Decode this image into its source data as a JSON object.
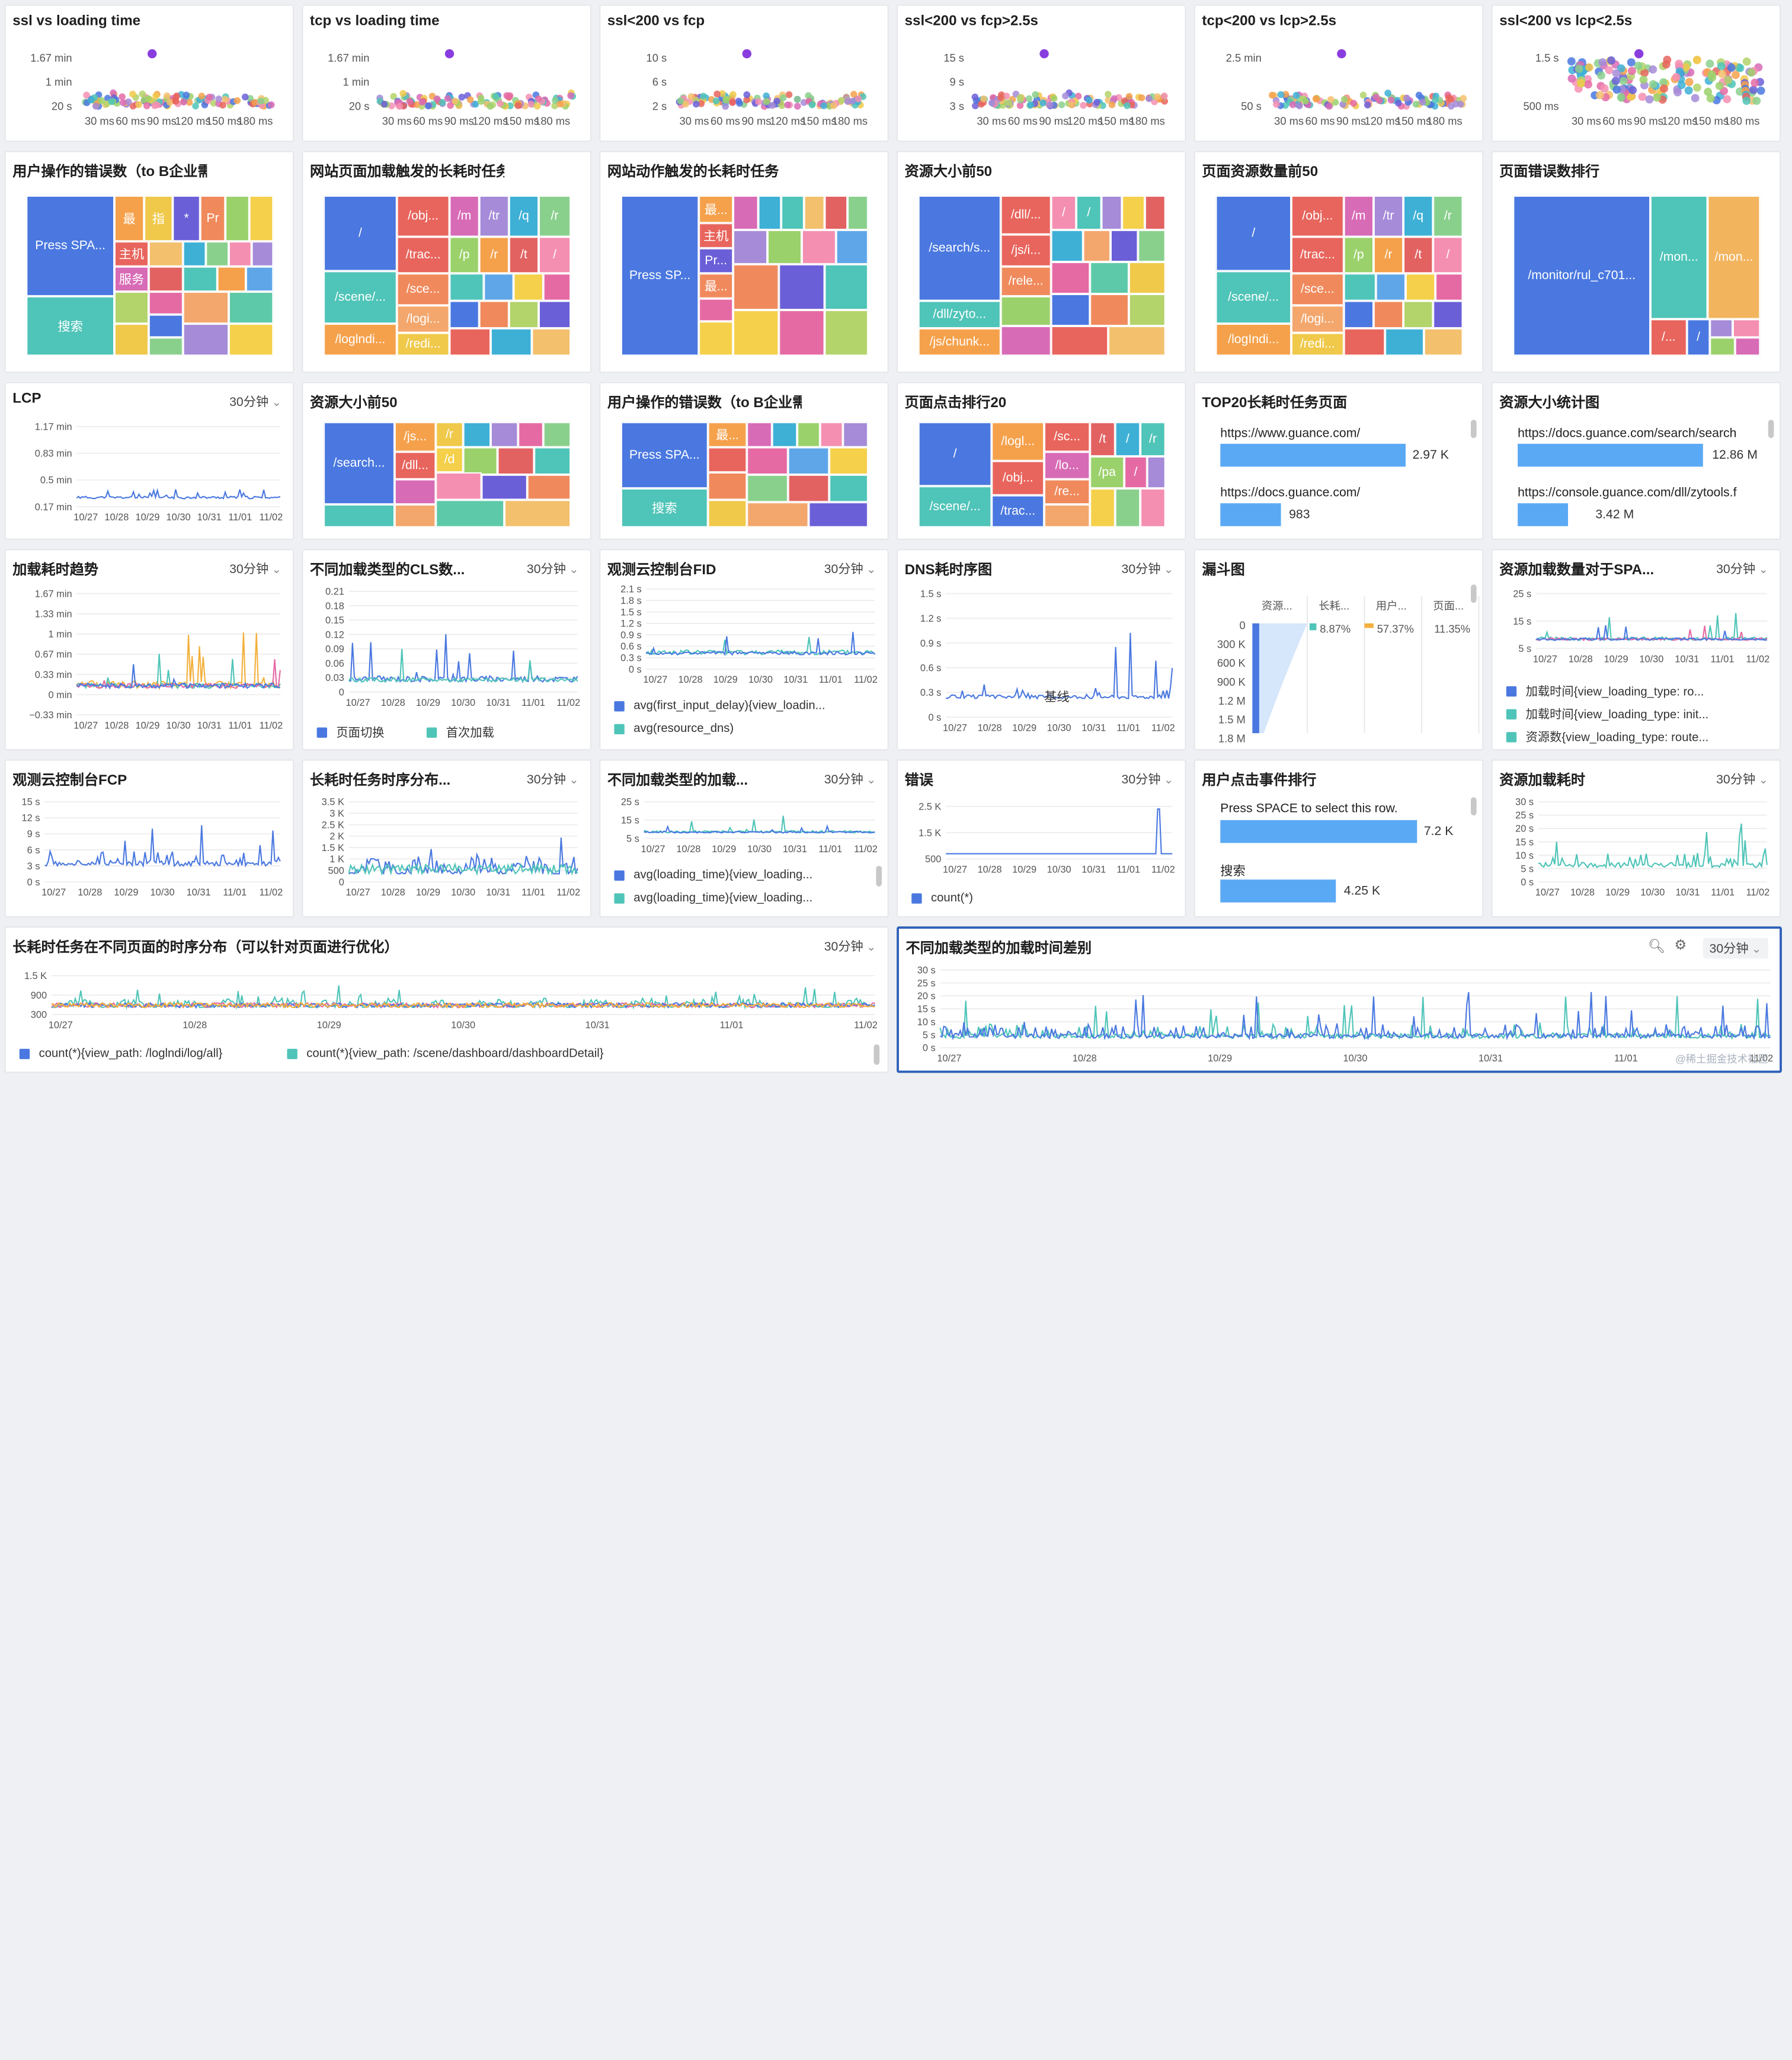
{
  "scatter_cards": [
    {
      "title": "ssl vs loading time",
      "yticks": [
        "1.67 min",
        "1 min",
        "20 s"
      ],
      "xticks": [
        "30 ms",
        "60 ms",
        "90 ms",
        "120 ms",
        "150 ms",
        "180 ms"
      ]
    },
    {
      "title": "tcp vs loading time",
      "yticks": [
        "1.67 min",
        "1 min",
        "20 s"
      ],
      "xticks": [
        "30 ms",
        "60 ms",
        "90 ms",
        "120 ms",
        "150 ms",
        "180 ms"
      ]
    },
    {
      "title": "ssl<200 vs fcp",
      "yticks": [
        "10 s",
        "6 s",
        "2 s"
      ],
      "xticks": [
        "30 ms",
        "60 ms",
        "90 ms",
        "120 ms",
        "150 ms",
        "180 ms"
      ]
    },
    {
      "title": "ssl<200 vs fcp>2.5s",
      "yticks": [
        "15 s",
        "9 s",
        "3 s"
      ],
      "xticks": [
        "30 ms",
        "60 ms",
        "90 ms",
        "120 ms",
        "150 ms",
        "180 ms"
      ]
    },
    {
      "title": "tcp<200 vs lcp>2.5s",
      "yticks": [
        "2.5 min",
        "50 s"
      ],
      "xticks": [
        "30 ms",
        "60 ms",
        "90 ms",
        "120 ms",
        "150 ms",
        "180 ms"
      ]
    },
    {
      "title": "ssl<200 vs lcp<2.5s",
      "yticks": [
        "1.5 s",
        "500 ms"
      ],
      "xticks": [
        "30 ms",
        "60 ms",
        "90 ms",
        "120 ms",
        "150 ms",
        "180 ms"
      ]
    }
  ],
  "treemap_cards": [
    {
      "title": "用户操作的错误数（to B企业需要...",
      "labels": [
        "Press SPA...",
        "搜索",
        "最",
        "指",
        "*",
        "Pr",
        "主机",
        "服务"
      ]
    },
    {
      "title": "网站页面加载触发的长耗时任务概...",
      "labels": [
        "/",
        "/scene/...",
        "/loglndi...",
        "/obj...",
        "/trac...",
        "/sce...",
        "/logi...",
        "/redi...",
        "/m",
        "/tr",
        "/q",
        "/r",
        "/p",
        "/r",
        "/t",
        "/"
      ]
    },
    {
      "title": "网站动作触发的长耗时任务",
      "labels": [
        "Press SP...",
        "最...",
        "主机",
        "Pr...",
        "最..."
      ]
    },
    {
      "title": "资源大小前50",
      "labels": [
        "/search/s...",
        "/dll/zyto...",
        "/js/chunk...",
        "/dll/...",
        "/js/i...",
        "/rele...",
        "/",
        "/"
      ]
    },
    {
      "title": "页面资源数量前50",
      "labels": [
        "/",
        "/scene/...",
        "/logIndi...",
        "/obj...",
        "/trac...",
        "/sce...",
        "/logi...",
        "/redi...",
        "/m",
        "/tr",
        "/q",
        "/r",
        "/p",
        "/r",
        "/t",
        "/"
      ]
    },
    {
      "title": "页面错误数排行",
      "labels": [
        "/monitor/rul_c701...",
        "/mon...",
        "/mon...",
        "/...",
        "/"
      ]
    }
  ],
  "row3": {
    "lcp": {
      "title": "LCP",
      "range": "30分钟",
      "yticks": [
        "1.17 min",
        "0.83 min",
        "0.5 min",
        "0.17 min"
      ],
      "xticks": [
        "10/27",
        "10/28",
        "10/29",
        "10/30",
        "10/31",
        "11/01",
        "11/02"
      ]
    },
    "res_top50": {
      "title": "资源大小前50",
      "labels": [
        "/search...",
        "/js...",
        "/dll...",
        "/r",
        "/d"
      ]
    },
    "op_err": {
      "title": "用户操作的错误数（to B企业需要...",
      "labels": [
        "Press SPA...",
        "搜索",
        "最..."
      ]
    },
    "click_top20": {
      "title": "页面点击排行20",
      "labels": [
        "/",
        "/scene/...",
        "/logl...",
        "/obj...",
        "/trac...",
        "/sc...",
        "/lo...",
        "/re...",
        "/t",
        "/",
        "/r",
        "/pa",
        "/"
      ]
    },
    "top20_long": {
      "title": "TOP20长耗时任务页面",
      "rows": [
        {
          "label": "https://www.guance.com/",
          "value": "2.97 K",
          "frac": 1.0
        },
        {
          "label": "https://docs.guance.com/",
          "value": "983",
          "frac": 0.33
        }
      ]
    },
    "res_stat": {
      "title": "资源大小统计图",
      "rows": [
        {
          "label": "https://docs.guance.com/search/search",
          "value": "12.86 M",
          "frac": 1.0
        },
        {
          "label": "https://console.guance.com/dll/zytools.f",
          "value": "3.42 M",
          "frac": 0.27
        }
      ]
    }
  },
  "row4": {
    "load_trend": {
      "title": "加载耗时趋势",
      "range": "30分钟",
      "yticks": [
        "1.67 min",
        "1.33 min",
        "1 min",
        "0.67 min",
        "0.33 min",
        "0 min",
        "−0.33 min"
      ],
      "xticks": [
        "10/27",
        "10/28",
        "10/29",
        "10/30",
        "10/31",
        "11/01",
        "11/02"
      ]
    },
    "cls": {
      "title": "不同加载类型的CLS数...",
      "range": "30分钟",
      "yticks": [
        "0.21",
        "0.18",
        "0.15",
        "0.12",
        "0.09",
        "0.06",
        "0.03",
        "0"
      ],
      "xticks": [
        "10/27",
        "10/28",
        "10/29",
        "10/30",
        "10/31",
        "11/01",
        "11/02"
      ],
      "legend": [
        {
          "label": "页面切换",
          "color": "#4a78e0"
        },
        {
          "label": "首次加载",
          "color": "#4fc4b8"
        }
      ]
    },
    "fid": {
      "title": "观测云控制台FID",
      "range": "30分钟",
      "yticks": [
        "2.1 s",
        "1.8 s",
        "1.5 s",
        "1.2 s",
        "0.9 s",
        "0.6 s",
        "0.3 s",
        "0 s"
      ],
      "xticks": [
        "10/27",
        "10/28",
        "10/29",
        "10/30",
        "10/31",
        "11/01",
        "11/02"
      ],
      "legend": [
        {
          "label": "avg(first_input_delay){view_loadin...",
          "color": "#4a78e0"
        },
        {
          "label": "avg(resource_dns)",
          "color": "#4fc4b8"
        }
      ]
    },
    "dns": {
      "title": "DNS耗时序图",
      "range": "30分钟",
      "yticks": [
        "1.5 s",
        "1.2 s",
        "0.9 s",
        "0.6 s",
        "0.3 s",
        "0 s"
      ],
      "xticks": [
        "10/27",
        "10/28",
        "10/29",
        "10/30",
        "10/31",
        "11/01",
        "11/02"
      ],
      "annotation": "基线"
    },
    "funnel": {
      "title": "漏斗图",
      "yticks": [
        "0",
        "300 K",
        "600 K",
        "900 K",
        "1.2 M",
        "1.5 M",
        "1.8 M"
      ],
      "cols": [
        "资源...",
        "长耗...",
        "用户...",
        "页面..."
      ],
      "pcts": [
        "8.87%",
        "57.37%",
        "11.35%"
      ]
    },
    "res_count": {
      "title": "资源加载数量对于SPA...",
      "range": "30分钟",
      "yticks": [
        "25 s",
        "15 s",
        "5 s"
      ],
      "xticks": [
        "10/27",
        "10/28",
        "10/29",
        "10/30",
        "10/31",
        "11/01",
        "11/02"
      ],
      "legend": [
        {
          "label": "加载时间{view_loading_type: ro...",
          "color": "#4a78e0"
        },
        {
          "label": "加载时间{view_loading_type: init...",
          "color": "#4fc4b8"
        },
        {
          "label": "资源数{view_loading_type: route...",
          "color": "#4fc4b8"
        }
      ]
    }
  },
  "row5": {
    "fcp": {
      "title": "观测云控制台FCP",
      "yticks": [
        "15 s",
        "12 s",
        "9 s",
        "6 s",
        "3 s",
        "0 s"
      ],
      "xticks": [
        "10/27",
        "10/28",
        "10/29",
        "10/30",
        "10/31",
        "11/01",
        "11/02"
      ]
    },
    "long_task": {
      "title": "长耗时任务时序分布...",
      "range": "30分钟",
      "yticks": [
        "3.5 K",
        "3 K",
        "2.5 K",
        "2 K",
        "1.5 K",
        "1 K",
        "500",
        "0"
      ],
      "xticks": [
        "10/27",
        "10/28",
        "10/29",
        "10/30",
        "10/31",
        "11/01",
        "11/02"
      ]
    },
    "load_type": {
      "title": "不同加载类型的加载...",
      "range": "30分钟",
      "yticks": [
        "25 s",
        "15 s",
        "5 s"
      ],
      "xticks": [
        "10/27",
        "10/28",
        "10/29",
        "10/30",
        "10/31",
        "11/01",
        "11/02"
      ],
      "legend": [
        {
          "label": "avg(loading_time){view_loading...",
          "color": "#4a78e0"
        },
        {
          "label": "avg(loading_time){view_loading...",
          "color": "#4fc4b8"
        }
      ]
    },
    "errors": {
      "title": "错误",
      "range": "30分钟",
      "yticks": [
        "2.5 K",
        "1.5 K",
        "500"
      ],
      "xticks": [
        "10/27",
        "10/28",
        "10/29",
        "10/30",
        "10/31",
        "11/01",
        "11/02"
      ],
      "legend": [
        {
          "label": "count(*)",
          "color": "#4a78e0"
        }
      ]
    },
    "click_rank": {
      "title": "用户点击事件排行",
      "rows": [
        {
          "label": "Press SPACE to select this row.",
          "value": "7.2 K",
          "frac": 1.0
        },
        {
          "label": "搜索",
          "value": "4.25 K",
          "frac": 0.59
        }
      ]
    },
    "res_time": {
      "title": "资源加载耗时",
      "range": "30分钟",
      "yticks": [
        "30 s",
        "25 s",
        "20 s",
        "15 s",
        "10 s",
        "5 s",
        "0 s"
      ],
      "xticks": [
        "10/27",
        "10/28",
        "10/29",
        "10/30",
        "10/31",
        "11/01",
        "11/02"
      ]
    }
  },
  "row6": {
    "long_dist": {
      "title": "长耗时任务在不同页面的时序分布（可以针对页面进行优化）",
      "range": "30分钟",
      "yticks": [
        "1.5 K",
        "900",
        "300"
      ],
      "xticks": [
        "10/27",
        "10/28",
        "10/29",
        "10/30",
        "10/31",
        "11/01",
        "11/02"
      ],
      "legend": [
        {
          "label": "count(*){view_path: /loglndi/log/all}",
          "color": "#4a78e0"
        },
        {
          "label": "count(*){view_path: /scene/dashboard/dashboardDetail}",
          "color": "#4fc4b8"
        }
      ]
    },
    "load_diff": {
      "title": "不同加载类型的加载时间差别",
      "range": "30分钟",
      "yticks": [
        "30 s",
        "25 s",
        "20 s",
        "15 s",
        "10 s",
        "5 s",
        "0 s"
      ],
      "xticks": [
        "10/27",
        "10/28",
        "10/29",
        "10/30",
        "10/31",
        "11/01",
        "11/02"
      ],
      "watermark": "@稀土掘金技术社区"
    }
  },
  "colors": {
    "blue": "#4a78e0",
    "teal": "#4fc4b8",
    "bar": "#5aa9f5",
    "selected_border": "#2f5fb8"
  },
  "icons": [
    "zoom-icon",
    "gear-icon",
    "chevron-down-icon"
  ]
}
